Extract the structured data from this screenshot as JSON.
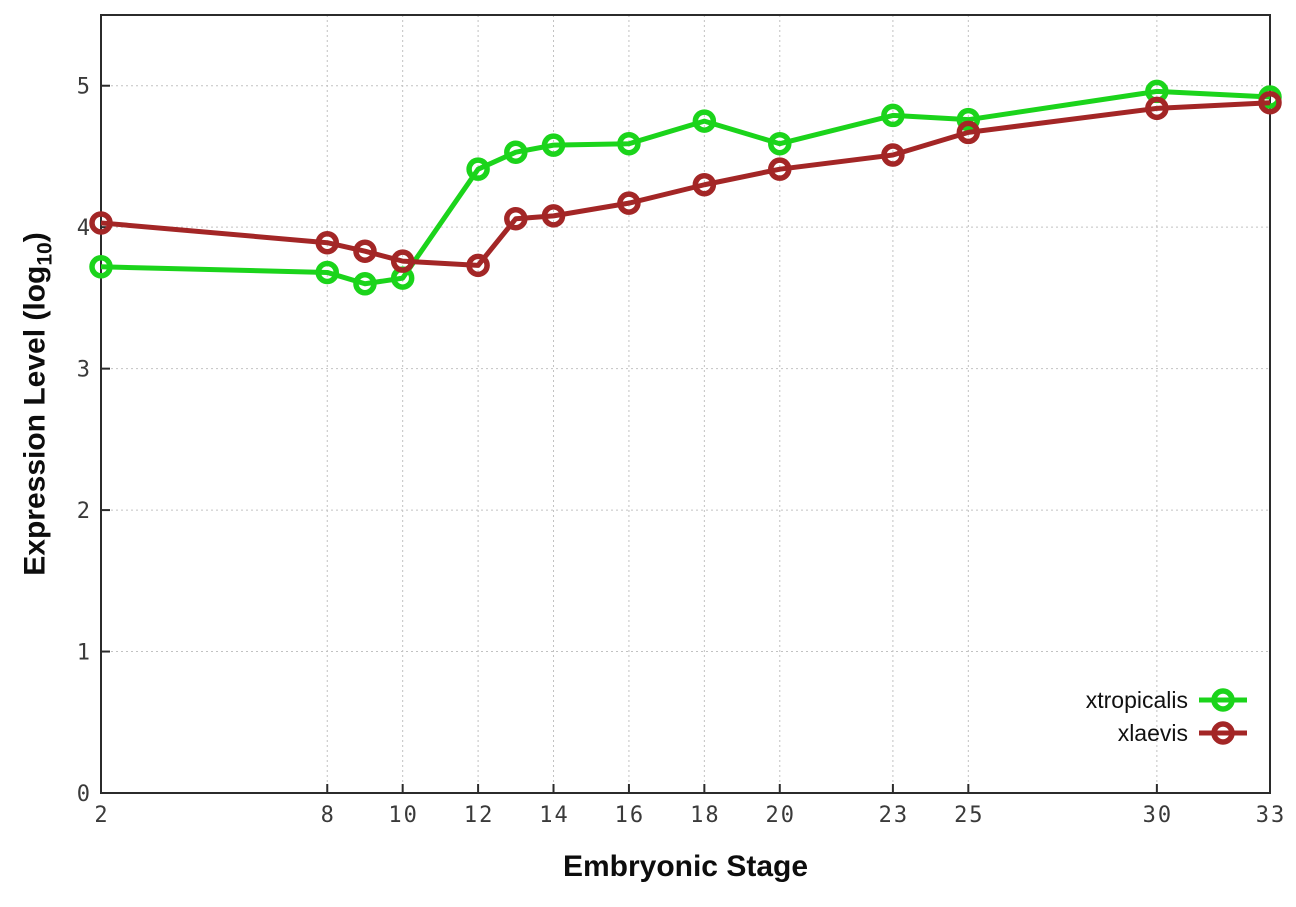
{
  "figure": {
    "background": "#ffffff",
    "frame_color": "#2b2b2b",
    "grid_color": "#c2c2c2"
  },
  "chart_data": {
    "type": "line",
    "title": "",
    "xlabel": "Embryonic Stage",
    "ylabel": "Expression Level (log10)",
    "ylabel_parts": {
      "pre": "Expression Level (log",
      "sub": "10",
      "post": ")"
    },
    "x": [
      2,
      8,
      9,
      10,
      12,
      13,
      14,
      16,
      18,
      20,
      23,
      25,
      30,
      33
    ],
    "series": [
      {
        "name": "xtropicalis",
        "color": "#1bd41b",
        "marker": "open-circle",
        "values": [
          3.72,
          3.68,
          3.6,
          3.64,
          4.41,
          4.53,
          4.58,
          4.59,
          4.75,
          4.59,
          4.79,
          4.76,
          4.96,
          4.92
        ]
      },
      {
        "name": "xlaevis",
        "color": "#a32626",
        "marker": "open-circle",
        "values": [
          4.03,
          3.89,
          3.83,
          3.76,
          3.73,
          4.06,
          4.08,
          4.17,
          4.3,
          4.41,
          4.51,
          4.67,
          4.84,
          4.88
        ]
      }
    ],
    "xticks": [
      2,
      8,
      10,
      12,
      14,
      16,
      18,
      20,
      23,
      25,
      30,
      33
    ],
    "yticks": [
      0,
      1,
      2,
      3,
      4,
      5
    ],
    "xlim": [
      2,
      33
    ],
    "ylim": [
      0,
      5.5
    ],
    "grid": true,
    "legend_position": "bottom-right"
  }
}
